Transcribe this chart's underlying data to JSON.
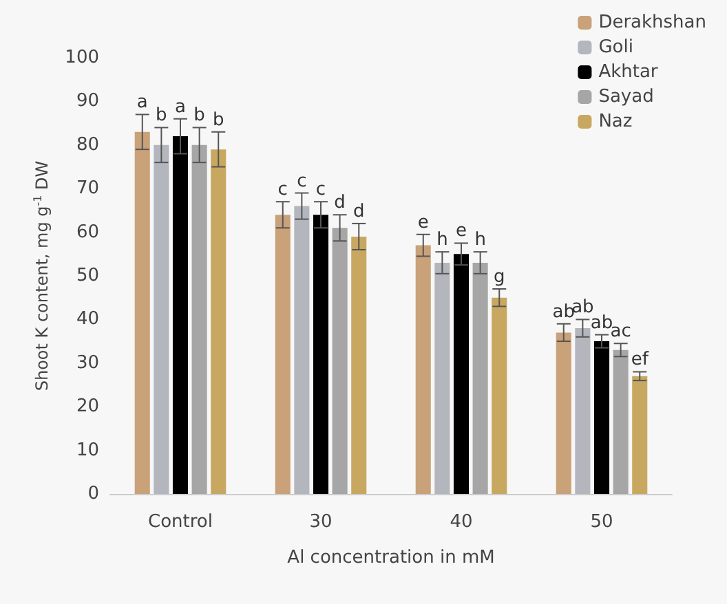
{
  "chart_data": {
    "type": "bar",
    "xlabel": "Al concentration in mM",
    "ylabel": "Shoot K content, mg g$^{-1}$ DW",
    "categories": [
      "Control",
      "30",
      "40",
      "50"
    ],
    "series": [
      {
        "name": "Derakhshan",
        "color": "#c9a27a",
        "values": [
          83,
          64,
          57,
          37
        ],
        "errors": [
          4,
          3,
          2.5,
          2
        ],
        "value_labels": [
          "a",
          "c",
          "e",
          "ab"
        ]
      },
      {
        "name": "Goli",
        "color": "#b4b6bd",
        "values": [
          80,
          66,
          53,
          38
        ],
        "errors": [
          4,
          3,
          2.5,
          2
        ],
        "value_labels": [
          "b",
          "c",
          "h",
          "ab"
        ]
      },
      {
        "name": "Akhtar",
        "color": "#000000",
        "values": [
          82,
          64,
          55,
          35
        ],
        "errors": [
          4,
          3,
          2.5,
          1.5
        ],
        "value_labels": [
          "a",
          "c",
          "e",
          "ab"
        ]
      },
      {
        "name": "Sayad",
        "color": "#a6a6a6",
        "values": [
          80,
          61,
          53,
          33
        ],
        "errors": [
          4,
          3,
          2.5,
          1.5
        ],
        "value_labels": [
          "b",
          "d",
          "h",
          "ac"
        ]
      },
      {
        "name": "Naz",
        "color": "#c8a860",
        "values": [
          79,
          59,
          45,
          27
        ],
        "errors": [
          4,
          3,
          2,
          1
        ],
        "value_labels": [
          "b",
          "d",
          "g",
          "ef"
        ]
      }
    ],
    "ylim": [
      0,
      100
    ],
    "yticks": [
      0,
      10,
      20,
      30,
      40,
      50,
      60,
      70,
      80,
      90,
      100
    ],
    "grid": false,
    "legend": "top right"
  }
}
